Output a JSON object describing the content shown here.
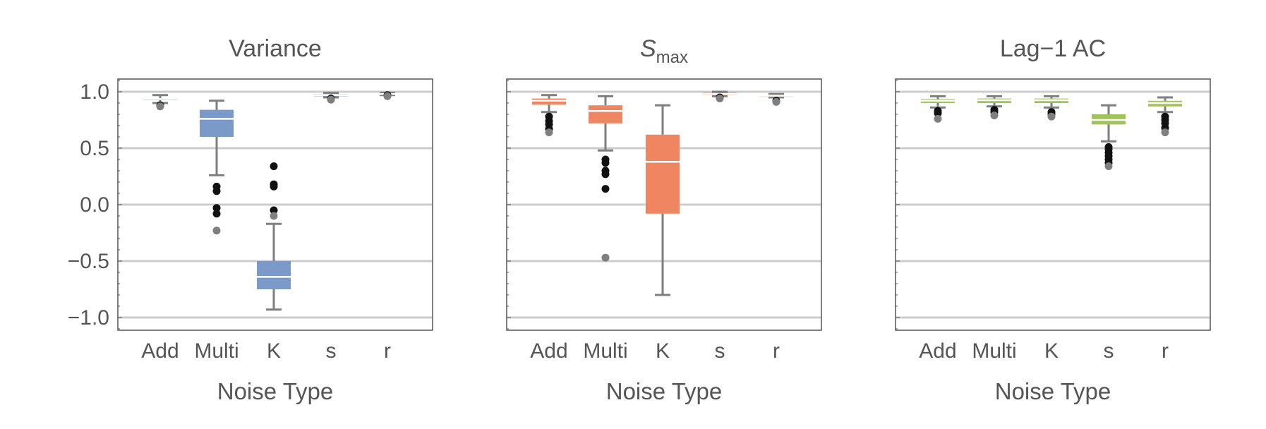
{
  "chart_data": [
    {
      "type": "boxplot",
      "title": "Variance",
      "title_sub": "",
      "color": "#7b99c9",
      "xlabel": "Noise Type",
      "ylabel": "",
      "categories": [
        "Add",
        "Multi",
        "K",
        "s",
        "r"
      ],
      "ylim": [
        -1.1,
        1.1
      ],
      "yticks": [
        1.0,
        0.5,
        0.0,
        -0.5,
        -1.0
      ],
      "ytick_labels": [
        "1.0",
        "0.5",
        "0.0",
        "−0.5",
        "−1.0"
      ],
      "show_ytick_labels": true,
      "grid": true,
      "boxes": [
        {
          "category": "Add",
          "min": 0.9,
          "q1": 0.925,
          "median": 0.935,
          "q3": 0.94,
          "max": 0.97,
          "outliers": [
            0.88,
            0.87
          ]
        },
        {
          "category": "Multi",
          "min": 0.26,
          "q1": 0.6,
          "median": 0.76,
          "q3": 0.84,
          "max": 0.92,
          "outliers": [
            0.16,
            0.12,
            -0.03,
            -0.08,
            -0.23
          ]
        },
        {
          "category": "K",
          "min": -0.93,
          "q1": -0.75,
          "median": -0.64,
          "q3": -0.5,
          "max": -0.17,
          "outliers": [
            0.34,
            0.18,
            0.16,
            -0.05,
            -0.1
          ]
        },
        {
          "category": "s",
          "min": 0.95,
          "q1": 0.96,
          "median": 0.97,
          "q3": 0.98,
          "max": 0.99,
          "outliers": [
            0.94,
            0.93
          ]
        },
        {
          "category": "r",
          "min": 0.97,
          "q1": 0.975,
          "median": 0.98,
          "q3": 0.985,
          "max": 0.99,
          "outliers": [
            0.97,
            0.96
          ]
        }
      ]
    },
    {
      "type": "boxplot",
      "title": "S",
      "title_sub": "max",
      "color": "#ef8561",
      "xlabel": "Noise Type",
      "ylabel": "",
      "categories": [
        "Add",
        "Multi",
        "K",
        "s",
        "r"
      ],
      "ylim": [
        -1.1,
        1.1
      ],
      "yticks": [
        1.0,
        0.5,
        0.0,
        -0.5,
        -1.0
      ],
      "ytick_labels": [
        "1.0",
        "0.5",
        "0.0",
        "−0.5",
        "−1.0"
      ],
      "show_ytick_labels": false,
      "grid": true,
      "boxes": [
        {
          "category": "Add",
          "min": 0.82,
          "q1": 0.885,
          "median": 0.92,
          "q3": 0.94,
          "max": 0.97,
          "outliers": [
            0.78,
            0.74,
            0.71,
            0.67,
            0.64
          ]
        },
        {
          "category": "Multi",
          "min": 0.48,
          "q1": 0.72,
          "median": 0.83,
          "q3": 0.88,
          "max": 0.96,
          "outliers": [
            0.4,
            0.37,
            0.3,
            0.27,
            0.14,
            -0.47
          ]
        },
        {
          "category": "K",
          "min": -0.8,
          "q1": -0.08,
          "median": 0.38,
          "q3": 0.62,
          "max": 0.88,
          "outliers": []
        },
        {
          "category": "s",
          "min": 0.96,
          "q1": 0.97,
          "median": 0.98,
          "q3": 0.99,
          "max": 1.0,
          "outliers": [
            0.95,
            0.94
          ]
        },
        {
          "category": "r",
          "min": 0.95,
          "q1": 0.955,
          "median": 0.965,
          "q3": 0.97,
          "max": 0.98,
          "outliers": [
            0.92,
            0.91
          ]
        }
      ]
    },
    {
      "type": "boxplot",
      "title": "Lag−1 AC",
      "title_sub": "",
      "color": "#9fc25a",
      "xlabel": "Noise Type",
      "ylabel": "",
      "categories": [
        "Add",
        "Multi",
        "K",
        "s",
        "r"
      ],
      "ylim": [
        -1.1,
        1.1
      ],
      "yticks": [
        1.0,
        0.5,
        0.0,
        -0.5,
        -1.0
      ],
      "ytick_labels": [
        "1.0",
        "0.5",
        "0.0",
        "−0.5",
        "−1.0"
      ],
      "show_ytick_labels": false,
      "grid": true,
      "boxes": [
        {
          "category": "Add",
          "min": 0.86,
          "q1": 0.9,
          "median": 0.92,
          "q3": 0.935,
          "max": 0.96,
          "outliers": [
            0.83,
            0.81,
            0.76
          ]
        },
        {
          "category": "Multi",
          "min": 0.87,
          "q1": 0.9,
          "median": 0.925,
          "q3": 0.94,
          "max": 0.96,
          "outliers": [
            0.84,
            0.82,
            0.79
          ]
        },
        {
          "category": "K",
          "min": 0.86,
          "q1": 0.9,
          "median": 0.925,
          "q3": 0.94,
          "max": 0.96,
          "outliers": [
            0.82,
            0.8,
            0.78
          ]
        },
        {
          "category": "s",
          "min": 0.56,
          "q1": 0.71,
          "median": 0.75,
          "q3": 0.8,
          "max": 0.88,
          "outliers": [
            0.51,
            0.49,
            0.46,
            0.43,
            0.4,
            0.37,
            0.34
          ]
        },
        {
          "category": "r",
          "min": 0.82,
          "q1": 0.87,
          "median": 0.9,
          "q3": 0.92,
          "max": 0.95,
          "outliers": [
            0.78,
            0.75,
            0.72,
            0.68,
            0.64
          ]
        }
      ]
    }
  ]
}
